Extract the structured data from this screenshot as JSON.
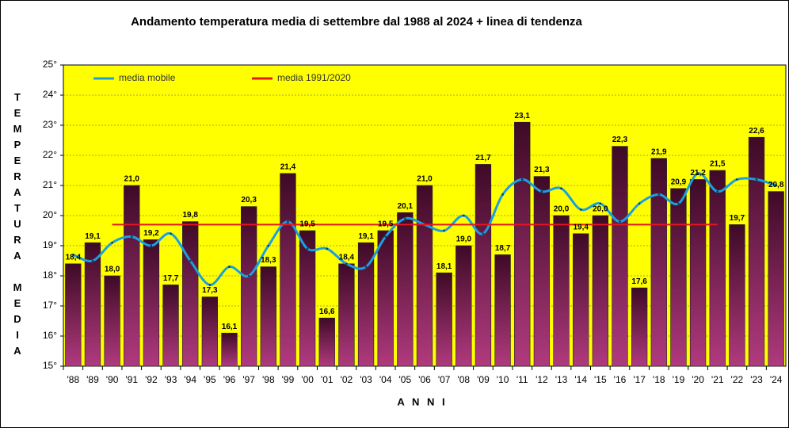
{
  "chart_data": {
    "type": "bar",
    "title": "Andamento temperatura media di settembre dal 1988 al 2024 + linea di tendenza",
    "ylabel": "TEMPERATURA MEDIA",
    "xlabel": "A N N I",
    "categories": [
      "'88",
      "'89",
      "'90",
      "'91",
      "'92",
      "'93",
      "'94",
      "'95",
      "'96",
      "'97",
      "'98",
      "'99",
      "'00",
      "'01",
      "'02",
      "'03",
      "'04",
      "'05",
      "'06",
      "'07",
      "'08",
      "'09",
      "'10",
      "'11",
      "'12",
      "'13",
      "'14",
      "'15",
      "'16",
      "'17",
      "'18",
      "'19",
      "'20",
      "'21",
      "'22",
      "'23",
      "'24"
    ],
    "values": [
      18.4,
      19.1,
      18.0,
      21.0,
      19.2,
      17.7,
      19.8,
      17.3,
      16.1,
      20.3,
      18.3,
      21.4,
      19.5,
      16.6,
      18.4,
      19.1,
      19.5,
      20.1,
      21.0,
      18.1,
      19.0,
      21.7,
      18.7,
      23.1,
      21.3,
      20.0,
      19.4,
      20.0,
      22.3,
      17.6,
      21.9,
      20.9,
      21.2,
      21.5,
      19.7,
      22.6,
      20.8
    ],
    "value_labels": [
      "18,4",
      "19,1",
      "18,0",
      "21,0",
      "19,2",
      "17,7",
      "19,8",
      "17,3",
      "16,1",
      "20,3",
      "18,3",
      "21,4",
      "19,5",
      "16,6",
      "18,4",
      "19,1",
      "19,5",
      "20,1",
      "21,0",
      "18,1",
      "19,0",
      "21,7",
      "18,7",
      "23,1",
      "21,3",
      "20,0",
      "19,4",
      "20,0",
      "22,3",
      "17,6",
      "21,9",
      "20,9",
      "21,2",
      "21,5",
      "19,7",
      "22,6",
      "20,8"
    ],
    "color": "#8a2a5e",
    "series": [
      {
        "name": "media mobile",
        "color": "#1aa0e0",
        "values": [
          18.7,
          18.5,
          19.1,
          19.3,
          19.0,
          19.4,
          18.5,
          17.7,
          18.3,
          18.0,
          19.0,
          19.8,
          18.9,
          18.9,
          18.4,
          18.3,
          19.3,
          19.9,
          19.7,
          19.5,
          20.0,
          19.4,
          20.7,
          21.2,
          20.8,
          20.9,
          20.2,
          20.4,
          19.8,
          20.4,
          20.7,
          20.4,
          21.4,
          20.8,
          21.2,
          21.2,
          21.0
        ]
      },
      {
        "name": "media 1991/2020",
        "color": "#e8141e",
        "values": [
          null,
          null,
          19.7,
          19.7,
          19.7,
          19.7,
          19.7,
          19.7,
          19.7,
          19.7,
          19.7,
          19.7,
          19.7,
          19.7,
          19.7,
          19.7,
          19.7,
          19.7,
          19.7,
          19.7,
          19.7,
          19.7,
          19.7,
          19.7,
          19.7,
          19.7,
          19.7,
          19.7,
          19.7,
          19.7,
          19.7,
          19.7,
          19.7,
          19.7,
          null,
          null,
          null
        ]
      }
    ],
    "ylim": [
      15,
      25
    ],
    "yticks": [
      {
        "value": 15,
        "label": "15°"
      },
      {
        "value": 16,
        "label": "16°"
      },
      {
        "value": 17,
        "label": "17°"
      },
      {
        "value": 18,
        "label": "18°"
      },
      {
        "value": 19,
        "label": "19°"
      },
      {
        "value": 20,
        "label": "20°"
      },
      {
        "value": 21,
        "label": "21°"
      },
      {
        "value": 22,
        "label": "22°"
      },
      {
        "value": 23,
        "label": "23°"
      },
      {
        "value": 24,
        "label": "24°"
      },
      {
        "value": 25,
        "label": "25°"
      }
    ],
    "grid": true
  }
}
